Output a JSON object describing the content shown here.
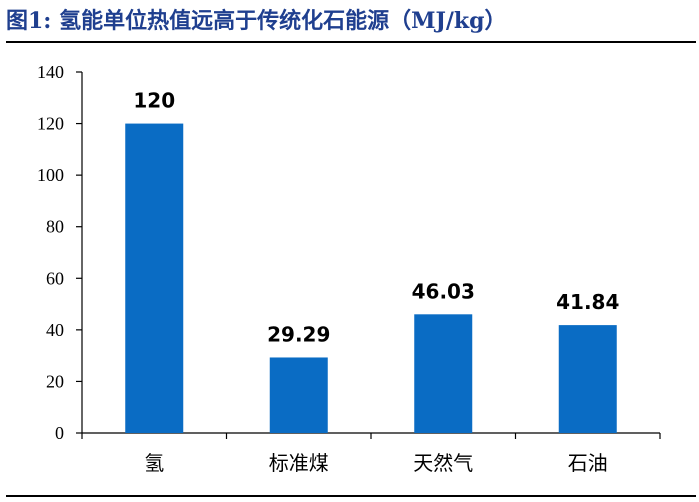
{
  "figure": {
    "title": "图1: 氢能单位热值远高于传统化石能源（MJ/kg）"
  },
  "colors": {
    "bar": "#0a6cc4",
    "title": "#1f3f8f"
  },
  "chart_data": {
    "type": "bar",
    "title": "",
    "xlabel": "",
    "ylabel": "",
    "categories": [
      "氢",
      "标准煤",
      "天然气",
      "石油"
    ],
    "values": [
      120,
      29.29,
      46.03,
      41.84
    ],
    "data_labels": [
      "120",
      "29.29",
      "46.03",
      "41.84"
    ],
    "ylim": [
      0,
      140
    ],
    "yticks": [
      0,
      20,
      40,
      60,
      80,
      100,
      120,
      140
    ],
    "grid": false,
    "legend": "none"
  }
}
